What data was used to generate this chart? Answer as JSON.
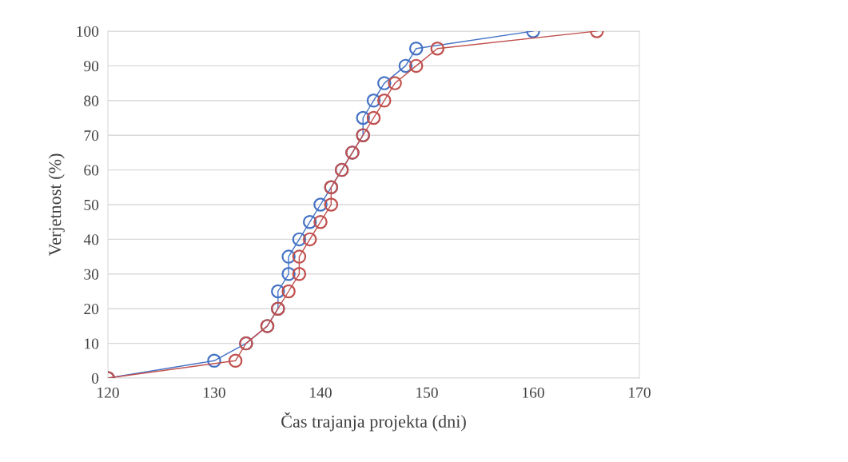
{
  "chart_data": {
    "type": "line",
    "xlabel": "Čas trajanja projekta (dni)",
    "ylabel": "Verjetnost (%)",
    "series": [
      {
        "color": "#4472c4",
        "x": [
          120,
          130,
          133,
          135,
          136,
          136,
          137,
          137,
          138,
          139,
          140,
          141,
          142,
          143,
          144,
          144,
          145,
          146,
          148,
          149,
          160
        ],
        "values": [
          0,
          5,
          10,
          15,
          20,
          25,
          30,
          35,
          40,
          45,
          50,
          55,
          60,
          65,
          70,
          75,
          80,
          85,
          90,
          95,
          100
        ]
      },
      {
        "color": "#c0504d",
        "x": [
          120,
          132,
          133,
          135,
          136,
          137,
          138,
          138,
          139,
          140,
          141,
          141,
          142,
          143,
          144,
          145,
          146,
          147,
          149,
          151,
          166
        ],
        "values": [
          0,
          5,
          10,
          15,
          20,
          25,
          30,
          35,
          40,
          45,
          50,
          55,
          60,
          65,
          70,
          75,
          80,
          85,
          90,
          95,
          100
        ]
      }
    ],
    "xlim": [
      120,
      170
    ],
    "xticks": [
      120,
      130,
      140,
      150,
      160,
      170
    ],
    "ylim": [
      0,
      100
    ],
    "yticks": [
      0,
      10,
      20,
      30,
      40,
      50,
      60,
      70,
      80,
      90,
      100
    ],
    "grid": "y",
    "marker": "circle",
    "line_style": "solid"
  }
}
